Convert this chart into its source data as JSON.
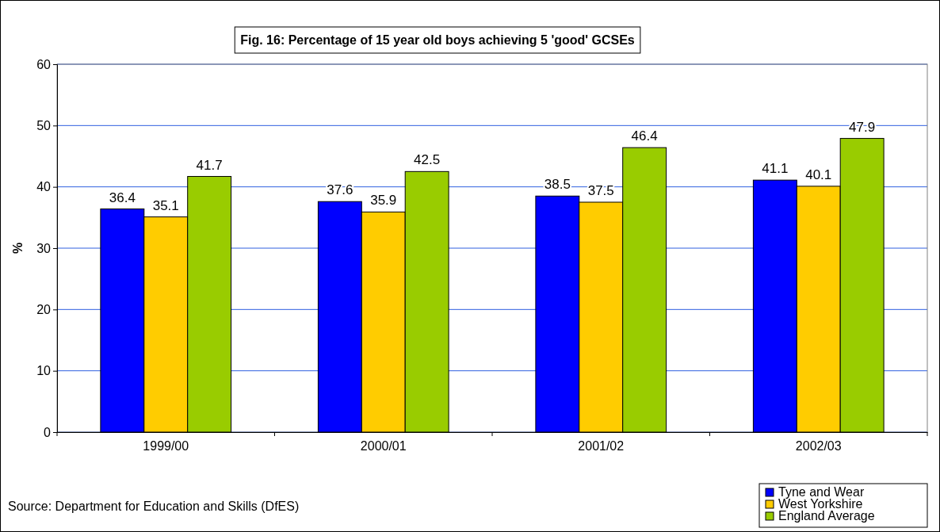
{
  "chart_data": {
    "type": "bar",
    "title": "Fig. 16: Percentage of 15 year old boys achieving 5 'good' GCSEs",
    "ylabel": "%",
    "categories": [
      "1999/00",
      "2000/01",
      "2001/02",
      "2002/03"
    ],
    "series": [
      {
        "name": "Tyne and Wear",
        "color": "#0000ff",
        "values": [
          36.4,
          37.6,
          38.5,
          41.1
        ]
      },
      {
        "name": "West Yorkshire",
        "color": "#ffcc00",
        "values": [
          35.1,
          35.9,
          37.5,
          40.1
        ]
      },
      {
        "name": "England Average",
        "color": "#99cc00",
        "values": [
          41.7,
          42.5,
          46.4,
          47.9
        ]
      }
    ],
    "ylim": [
      0,
      60
    ],
    "yticks": [
      0,
      10,
      20,
      30,
      40,
      50,
      60
    ],
    "grid": "y",
    "legend": "bottom right",
    "data_labels": true,
    "annotations": [
      "Source: Department for Education and Skills (DfES)"
    ]
  }
}
